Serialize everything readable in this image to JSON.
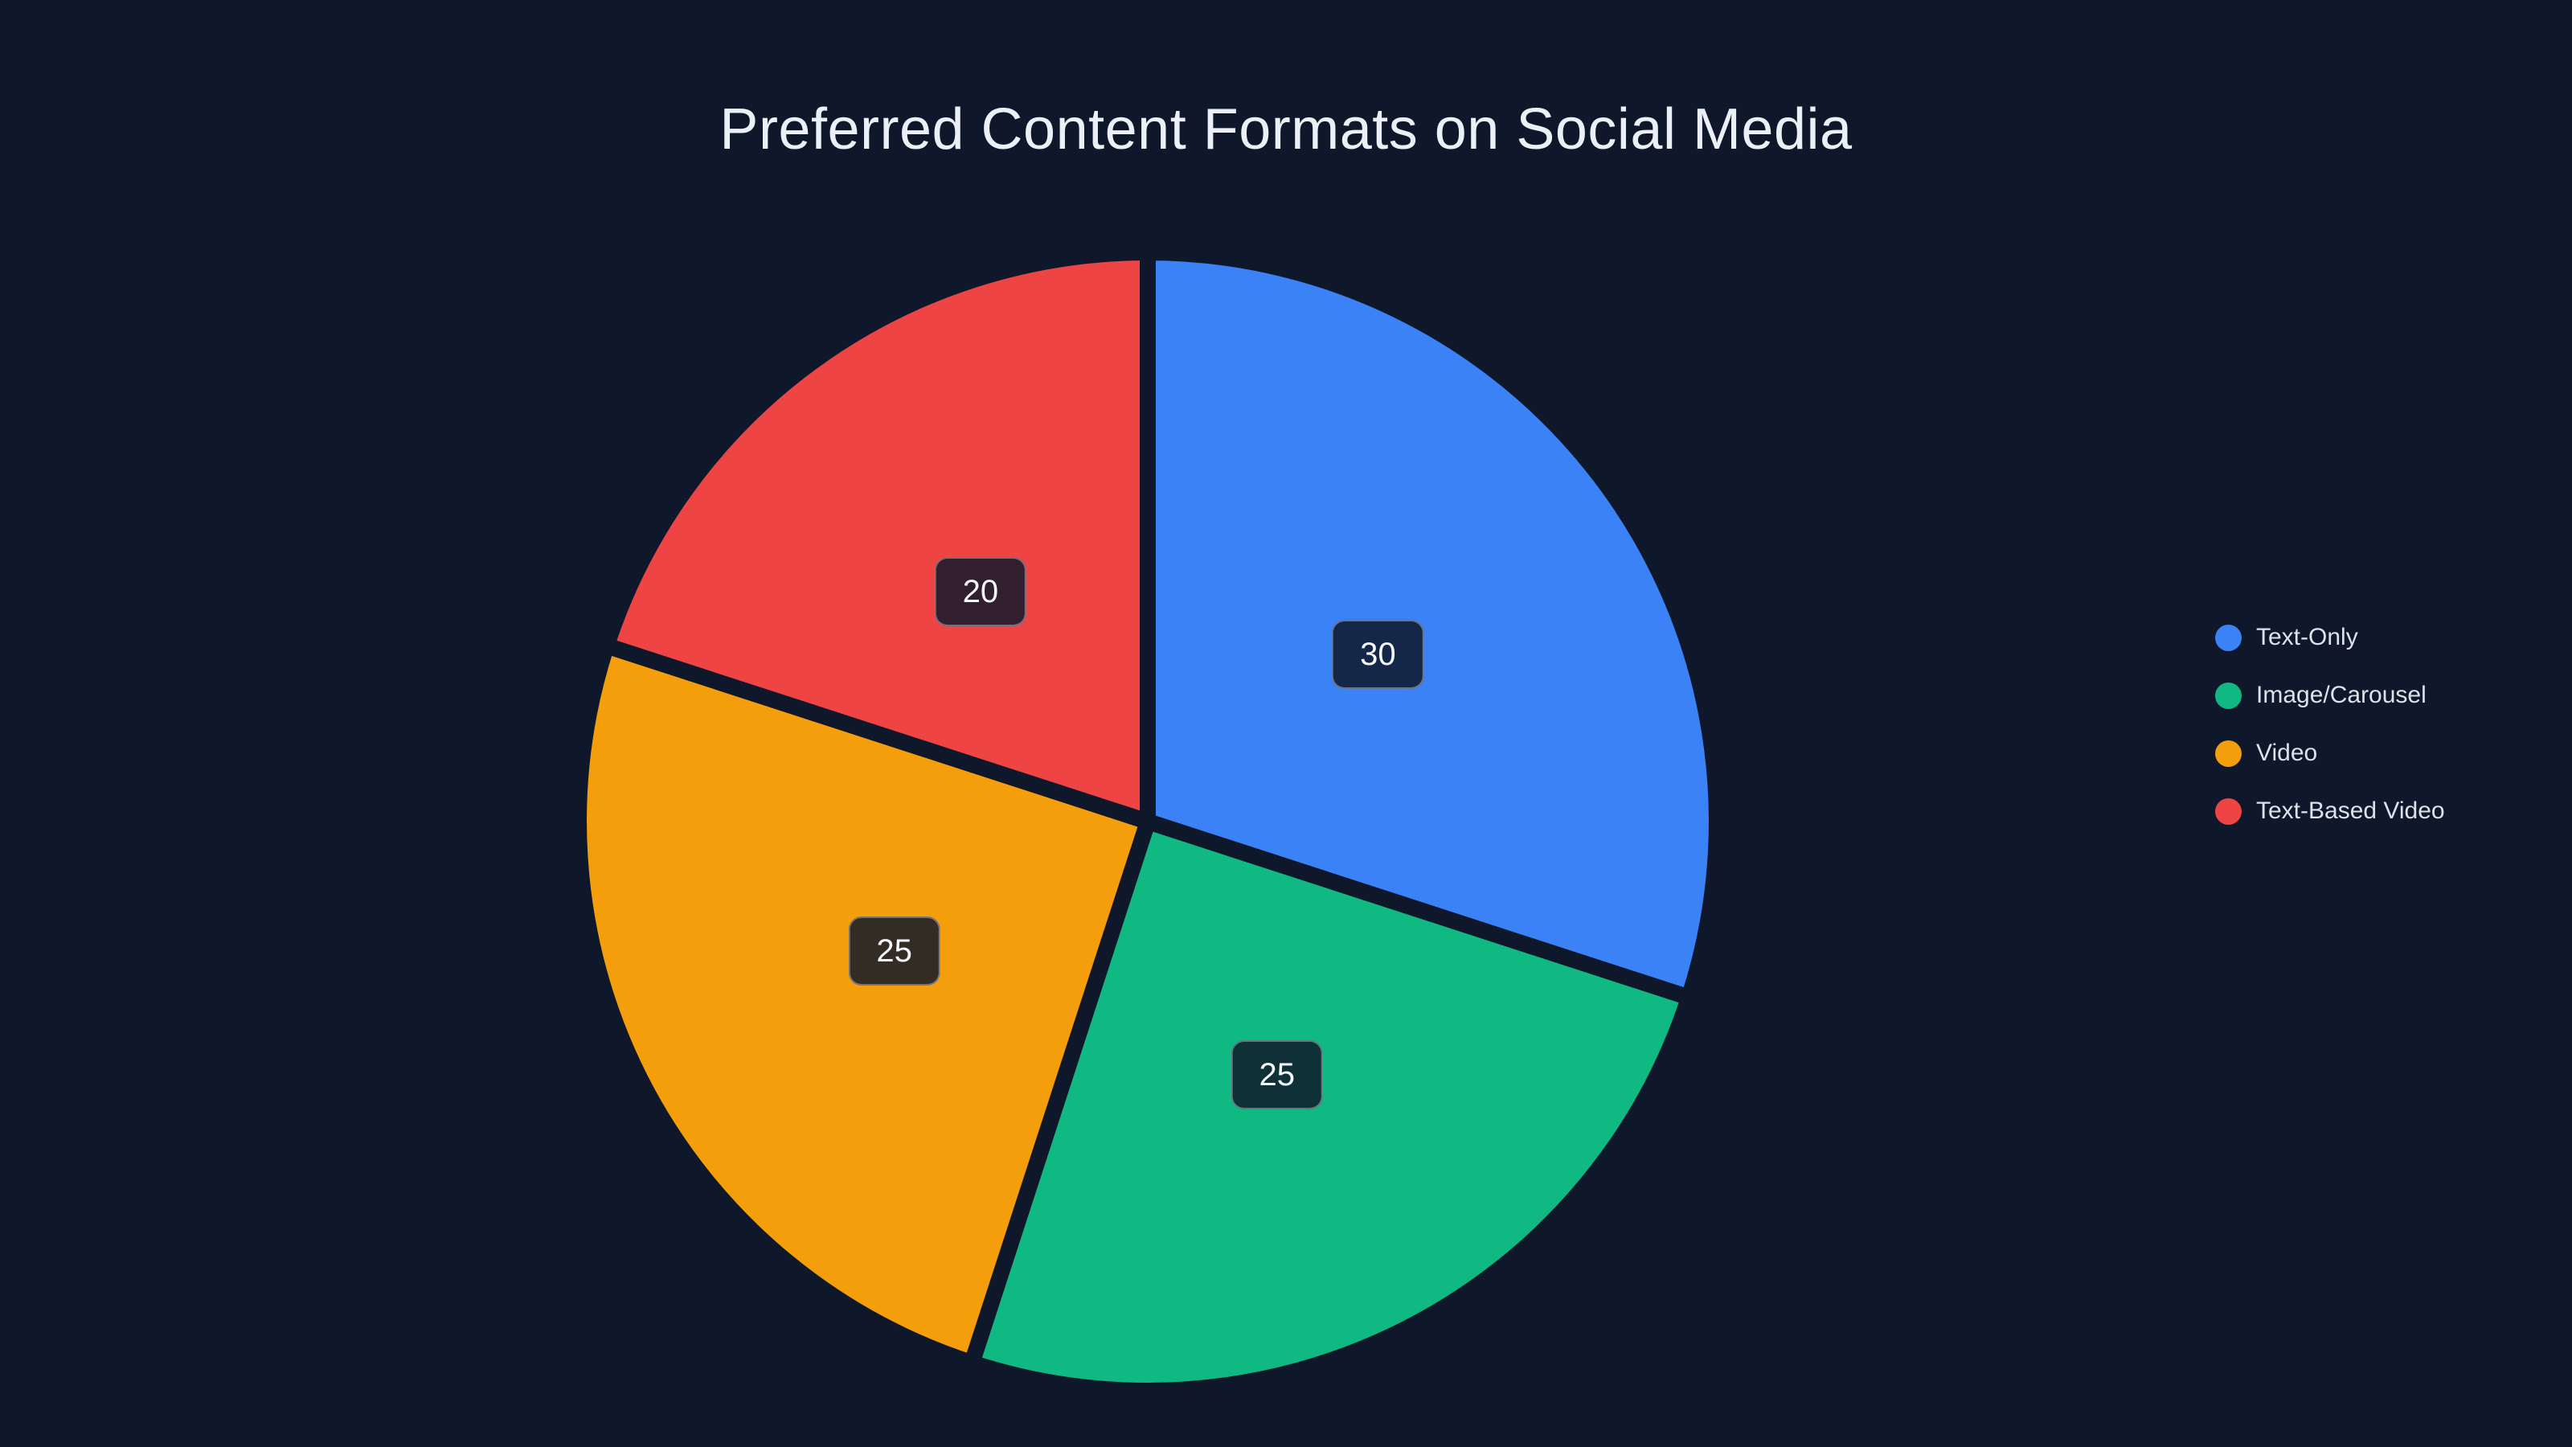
{
  "colors": {
    "background": "#0f172a",
    "title_text": "#ebf0f6",
    "legend_text": "#dbe2ea",
    "badge_text": "#f5f8fa",
    "badge_bg": "rgba(15, 23, 42, 0.85)",
    "badge_border": "rgba(255, 255, 255, 0.35)"
  },
  "chart_data": {
    "type": "pie",
    "title": "Preferred Content Formats on Social Media",
    "labels": [
      "Text-Only",
      "Image/Carousel",
      "Video",
      "Text-Based Video"
    ],
    "values": [
      30,
      25,
      25,
      20
    ],
    "value_labels": [
      "30",
      "25",
      "25",
      "20"
    ],
    "colors": [
      "#3b82f6",
      "#10b981",
      "#f59e0b",
      "#ef4444"
    ],
    "start_angle_deg": 0,
    "direction": "clockwise",
    "slice_label_radius_fraction": 0.5,
    "legend_position": "right",
    "total": 100
  }
}
